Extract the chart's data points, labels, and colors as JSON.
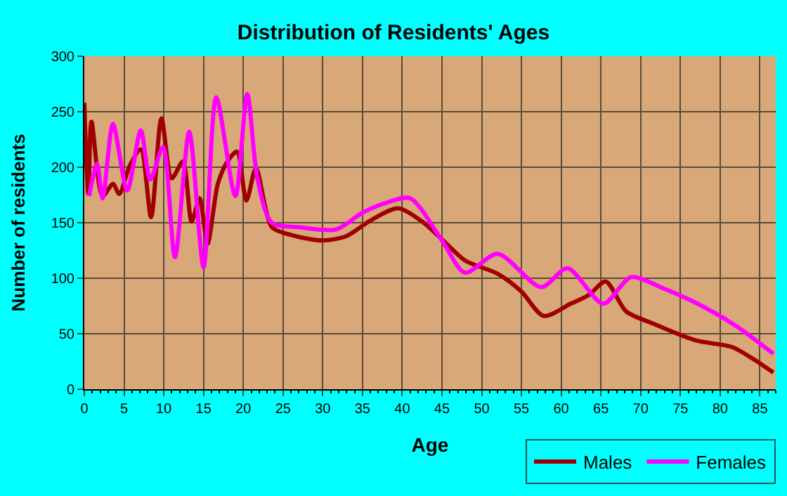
{
  "chart_data": {
    "type": "line",
    "title": "Distribution of Residents' Ages",
    "xlabel": "Age",
    "ylabel": "Number of residents",
    "xlim": [
      0,
      87
    ],
    "xticks": [
      0,
      5,
      10,
      15,
      20,
      25,
      30,
      35,
      40,
      45,
      50,
      55,
      60,
      65,
      70,
      75,
      80,
      85
    ],
    "ylim": [
      0,
      300
    ],
    "yticks": [
      0,
      50,
      100,
      150,
      200,
      250,
      300
    ],
    "grid": true,
    "legend": "bottom right",
    "marker": "none",
    "line_style": "solid",
    "series": [
      {
        "name": "Males",
        "color": "#a00000",
        "x": [
          0,
          0.5,
          0.9,
          2.3,
          3.6,
          4.4,
          5.7,
          7.1,
          8.4,
          9.7,
          11,
          12.4,
          13.5,
          14.5,
          15.5,
          16.8,
          18,
          19.2,
          20.4,
          21.6,
          23.6,
          26,
          30,
          33,
          36,
          39.5,
          42.7,
          45,
          47.9,
          52,
          55,
          57.8,
          61.2,
          63.5,
          65.6,
          68.2,
          71.6,
          76.9,
          81.5,
          84,
          86.7
        ],
        "values": [
          258,
          176,
          241,
          174,
          185,
          176,
          201,
          216,
          155,
          244,
          190,
          205,
          151,
          172,
          131,
          185,
          205,
          214,
          170,
          199,
          146,
          139,
          134,
          138,
          152,
          163,
          150,
          135,
          116,
          104,
          88,
          66,
          77,
          85,
          97,
          70,
          59,
          44,
          38,
          28,
          15
        ]
      },
      {
        "name": "Females",
        "color": "#ff00ff",
        "x": [
          0.6,
          1.6,
          2.3,
          3.6,
          5.4,
          7.1,
          8.3,
          9.9,
          11.4,
          13.2,
          15,
          16.6,
          19,
          20.5,
          21.8,
          23.6,
          27,
          31.7,
          35,
          38,
          41,
          45,
          47.9,
          52,
          57.5,
          60.8,
          65.3,
          68.8,
          72.8,
          76.9,
          82,
          86.7
        ],
        "values": [
          174,
          203,
          172,
          239,
          179,
          233,
          189,
          218,
          119,
          232,
          110,
          263,
          174,
          266,
          189,
          150,
          146,
          144,
          159,
          168,
          172,
          134,
          105,
          122,
          92,
          109,
          77,
          101,
          91,
          78,
          57,
          32
        ]
      }
    ]
  }
}
